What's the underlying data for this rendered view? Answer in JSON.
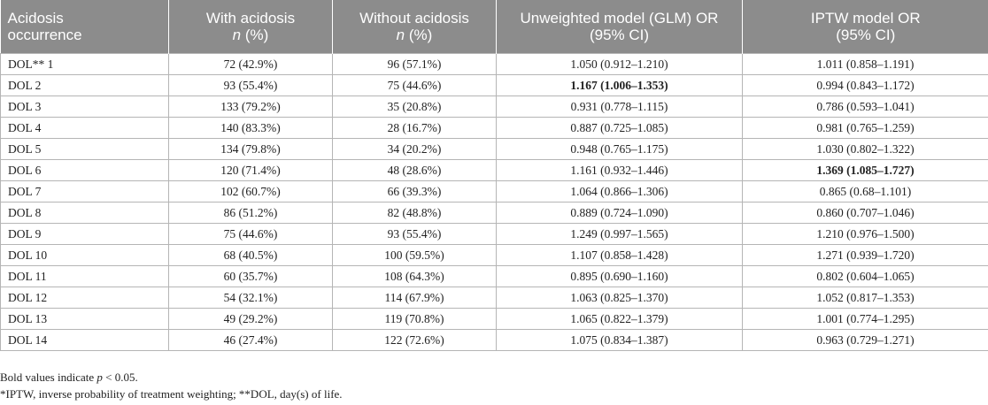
{
  "headers": {
    "c1": "Acidosis",
    "c1b": "occurrence",
    "c2": "With acidosis",
    "c2b_italic": "n",
    "c2b_rest": " (%)",
    "c3": "Without acidosis",
    "c3b_italic": "n",
    "c3b_rest": " (%)",
    "c4": "Unweighted model (GLM) OR",
    "c4b": "(95% CI)",
    "c5": "IPTW model OR",
    "c5b": "(95% CI)"
  },
  "rows": [
    {
      "label": "DOL** 1",
      "with": "72 (42.9%)",
      "without": "96 (57.1%)",
      "unweighted": "1.050 (0.912–1.210)",
      "iptw": "1.011 (0.858–1.191)",
      "bold_unweighted": false,
      "bold_iptw": false
    },
    {
      "label": "DOL 2",
      "with": "93 (55.4%)",
      "without": "75 (44.6%)",
      "unweighted": "1.167 (1.006–1.353)",
      "iptw": "0.994 (0.843–1.172)",
      "bold_unweighted": true,
      "bold_iptw": false
    },
    {
      "label": "DOL 3",
      "with": "133 (79.2%)",
      "without": "35 (20.8%)",
      "unweighted": "0.931 (0.778–1.115)",
      "iptw": "0.786 (0.593–1.041)",
      "bold_unweighted": false,
      "bold_iptw": false
    },
    {
      "label": "DOL 4",
      "with": "140 (83.3%)",
      "without": "28 (16.7%)",
      "unweighted": "0.887 (0.725–1.085)",
      "iptw": "0.981 (0.765–1.259)",
      "bold_unweighted": false,
      "bold_iptw": false
    },
    {
      "label": "DOL 5",
      "with": "134 (79.8%)",
      "without": "34 (20.2%)",
      "unweighted": "0.948 (0.765–1.175)",
      "iptw": "1.030 (0.802–1.322)",
      "bold_unweighted": false,
      "bold_iptw": false
    },
    {
      "label": "DOL 6",
      "with": "120 (71.4%)",
      "without": "48 (28.6%)",
      "unweighted": "1.161 (0.932–1.446)",
      "iptw": "1.369 (1.085–1.727)",
      "bold_unweighted": false,
      "bold_iptw": true
    },
    {
      "label": "DOL 7",
      "with": "102 (60.7%)",
      "without": "66 (39.3%)",
      "unweighted": "1.064 (0.866–1.306)",
      "iptw": "0.865 (0.68–1.101)",
      "bold_unweighted": false,
      "bold_iptw": false
    },
    {
      "label": "DOL 8",
      "with": "86 (51.2%)",
      "without": "82 (48.8%)",
      "unweighted": "0.889 (0.724–1.090)",
      "iptw": "0.860 (0.707–1.046)",
      "bold_unweighted": false,
      "bold_iptw": false
    },
    {
      "label": "DOL 9",
      "with": "75 (44.6%)",
      "without": "93 (55.4%)",
      "unweighted": "1.249 (0.997–1.565)",
      "iptw": "1.210 (0.976–1.500)",
      "bold_unweighted": false,
      "bold_iptw": false
    },
    {
      "label": "DOL 10",
      "with": "68 (40.5%)",
      "without": "100 (59.5%)",
      "unweighted": "1.107 (0.858–1.428)",
      "iptw": "1.271 (0.939–1.720)",
      "bold_unweighted": false,
      "bold_iptw": false
    },
    {
      "label": "DOL 11",
      "with": "60 (35.7%)",
      "without": "108 (64.3%)",
      "unweighted": "0.895 (0.690–1.160)",
      "iptw": "0.802 (0.604–1.065)",
      "bold_unweighted": false,
      "bold_iptw": false
    },
    {
      "label": "DOL 12",
      "with": "54 (32.1%)",
      "without": "114 (67.9%)",
      "unweighted": "1.063 (0.825–1.370)",
      "iptw": "1.052 (0.817–1.353)",
      "bold_unweighted": false,
      "bold_iptw": false
    },
    {
      "label": "DOL 13",
      "with": "49 (29.2%)",
      "without": "119 (70.8%)",
      "unweighted": "1.065 (0.822–1.379)",
      "iptw": "1.001 (0.774–1.295)",
      "bold_unweighted": false,
      "bold_iptw": false
    },
    {
      "label": "DOL 14",
      "with": "46 (27.4%)",
      "without": "122 (72.6%)",
      "unweighted": "1.075 (0.834–1.387)",
      "iptw": "0.963 (0.729–1.271)",
      "bold_unweighted": false,
      "bold_iptw": false
    }
  ],
  "notes": {
    "bold_prefix": "Bold values indicate ",
    "bold_p": "p",
    "bold_suffix": " < 0.05.",
    "abbrev": "*IPTW, inverse probability of treatment weighting; **DOL, day(s) of life."
  },
  "colors": {
    "header_bg": "#8c8c8c",
    "header_text": "#ffffff",
    "grid": "#b5b5b5"
  }
}
